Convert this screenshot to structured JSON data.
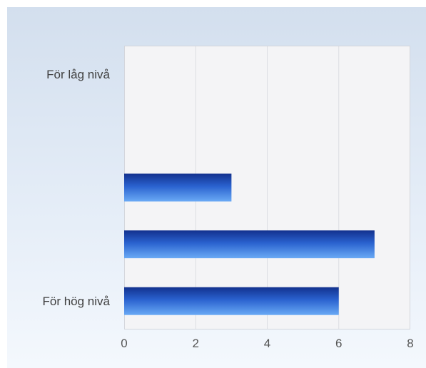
{
  "chart_data": {
    "type": "bar",
    "orientation": "horizontal",
    "categories": [
      "För låg nivå",
      "",
      "",
      "",
      "För hög nivå"
    ],
    "values": [
      0,
      0,
      3,
      7,
      6
    ],
    "xlim": [
      0,
      8
    ],
    "xticks": [
      0,
      2,
      4,
      6,
      8
    ],
    "title": "",
    "xlabel": "",
    "ylabel": "",
    "grid": "vertical",
    "legend": "none"
  },
  "colors": {
    "bar_dark": "#12318e",
    "bar_light": "#6aaaf5",
    "grid": "#dcdde2"
  }
}
